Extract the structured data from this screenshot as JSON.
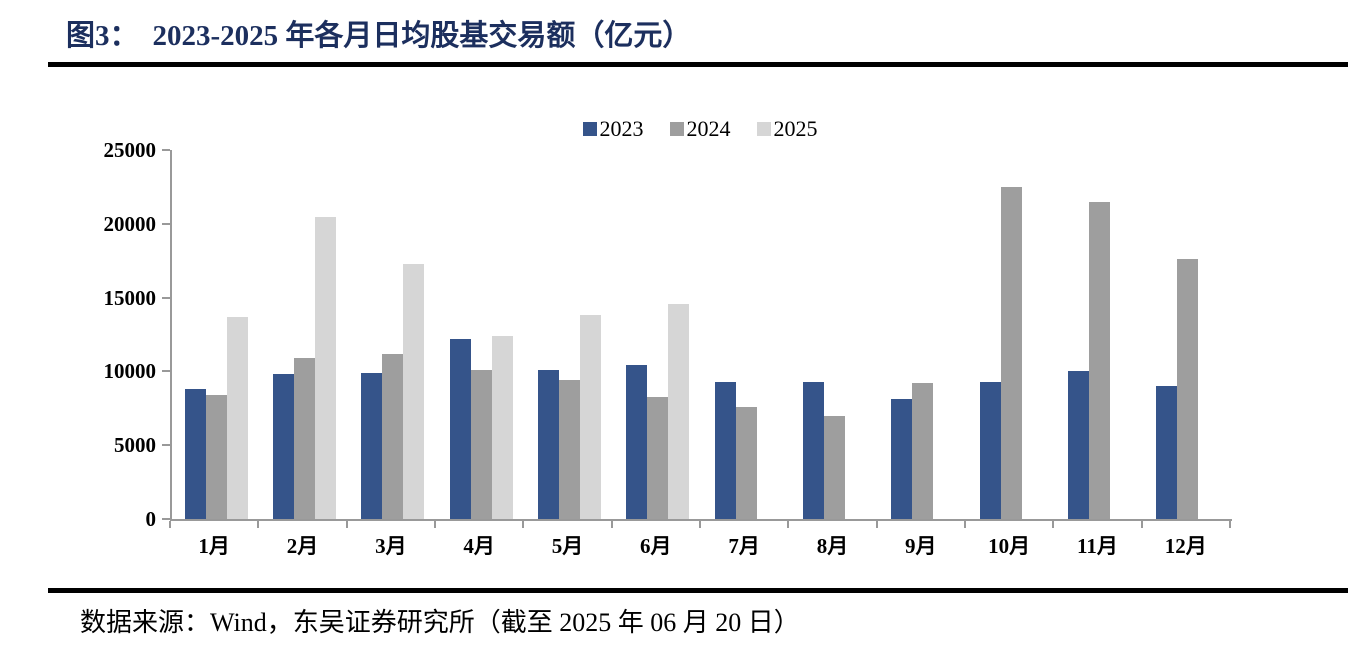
{
  "page": {
    "figure_label": "图3：",
    "title": "2023-2025 年各月日均股基交易额（亿元）",
    "title_color": "#1C2F5E",
    "source_text": "数据来源：Wind，东吴证券研究所（截至 2025 年 06 月 20 日）"
  },
  "chart_data": {
    "type": "bar",
    "title": "2023-2025 年各月日均股基交易额（亿元）",
    "ylabel": "",
    "xlabel": "",
    "categories": [
      "1月",
      "2月",
      "3月",
      "4月",
      "5月",
      "6月",
      "7月",
      "8月",
      "9月",
      "10月",
      "11月",
      "12月"
    ],
    "series": [
      {
        "name": "2023",
        "color": "#35548A",
        "values": [
          8800,
          9800,
          9900,
          12200,
          10100,
          10450,
          9300,
          9300,
          8100,
          9250,
          10000,
          9000
        ]
      },
      {
        "name": "2024",
        "color": "#9E9E9E",
        "values": [
          8400,
          10900,
          11150,
          10100,
          9450,
          8300,
          7600,
          6950,
          9200,
          22500,
          21500,
          17650
        ]
      },
      {
        "name": "2025",
        "color": "#D6D6D6",
        "values": [
          13700,
          20450,
          17300,
          12400,
          13800,
          14550,
          null,
          null,
          null,
          null,
          null,
          null
        ]
      }
    ],
    "ylim": [
      0,
      25000
    ],
    "yticks": [
      0,
      5000,
      10000,
      15000,
      20000,
      25000
    ],
    "grid": false,
    "legend_position": "top-center",
    "axis_color": "#999999"
  }
}
